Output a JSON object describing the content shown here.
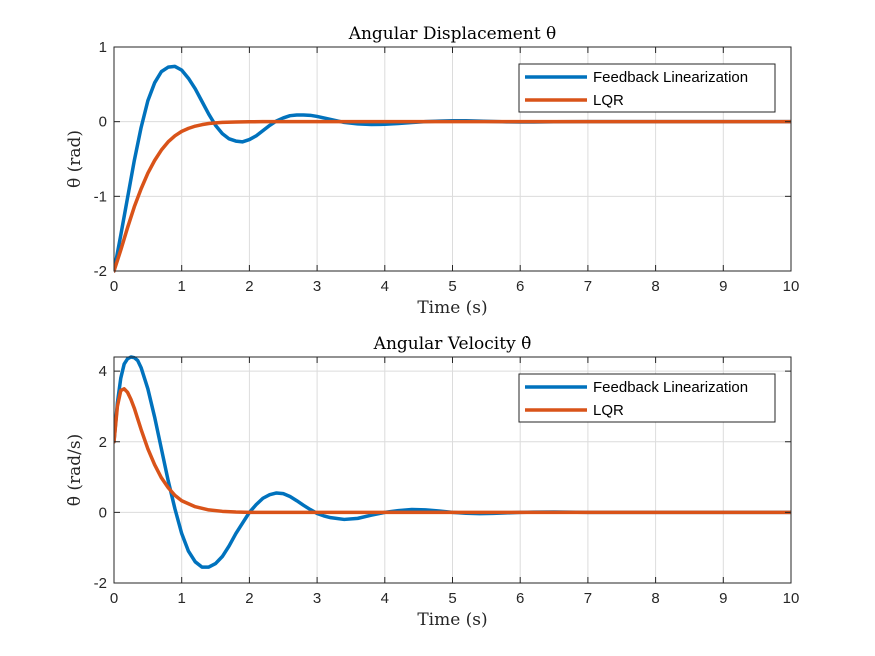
{
  "chart_data": [
    {
      "type": "line",
      "title": "Angular Displacement θ",
      "xlabel": "Time (s)",
      "ylabel": "θ (rad)",
      "xlim": [
        0,
        10
      ],
      "ylim": [
        -2,
        1
      ],
      "xticks": [
        "0",
        "1",
        "2",
        "3",
        "4",
        "5",
        "6",
        "7",
        "8",
        "9",
        "10"
      ],
      "yticks": [
        "-2",
        "-1",
        "0",
        "1"
      ],
      "grid": true,
      "legend_position": "top-right",
      "series": [
        {
          "name": "Feedback Linearization",
          "color": "#0072BD",
          "x": [
            0,
            0.1,
            0.2,
            0.3,
            0.4,
            0.5,
            0.6,
            0.7,
            0.8,
            0.9,
            1.0,
            1.1,
            1.2,
            1.3,
            1.4,
            1.5,
            1.6,
            1.7,
            1.8,
            1.9,
            2.0,
            2.1,
            2.2,
            2.3,
            2.4,
            2.5,
            2.6,
            2.7,
            2.8,
            2.9,
            3.0,
            3.1,
            3.2,
            3.4,
            3.6,
            3.8,
            4.0,
            4.2,
            4.4,
            4.6,
            4.8,
            5.0,
            5.2,
            5.4,
            5.6,
            5.8,
            6.0,
            6.2,
            6.5,
            7.0,
            7.5,
            8.0,
            8.5,
            9.0,
            9.5,
            10.0
          ],
          "y": [
            -2.0,
            -1.52,
            -1.02,
            -0.52,
            -0.08,
            0.28,
            0.52,
            0.67,
            0.73,
            0.74,
            0.69,
            0.58,
            0.44,
            0.27,
            0.1,
            -0.05,
            -0.16,
            -0.23,
            -0.26,
            -0.27,
            -0.24,
            -0.19,
            -0.12,
            -0.05,
            0.01,
            0.05,
            0.08,
            0.09,
            0.09,
            0.085,
            0.07,
            0.05,
            0.03,
            -0.01,
            -0.03,
            -0.038,
            -0.035,
            -0.025,
            -0.012,
            0.0,
            0.008,
            0.013,
            0.012,
            0.008,
            0.002,
            -0.003,
            -0.005,
            -0.004,
            -0.001,
            0.001,
            0.0,
            0.0,
            0.0,
            0.0,
            0.0,
            0.0
          ]
        },
        {
          "name": "LQR",
          "color": "#D95319",
          "x": [
            0,
            0.1,
            0.2,
            0.3,
            0.4,
            0.5,
            0.6,
            0.7,
            0.8,
            0.9,
            1.0,
            1.1,
            1.2,
            1.3,
            1.4,
            1.5,
            1.6,
            1.8,
            2.0,
            2.2,
            2.5,
            3.0,
            4.0,
            5.0,
            6.0,
            7.0,
            8.0,
            9.0,
            10.0
          ],
          "y": [
            -2.0,
            -1.72,
            -1.42,
            -1.14,
            -0.9,
            -0.69,
            -0.52,
            -0.38,
            -0.27,
            -0.19,
            -0.13,
            -0.09,
            -0.06,
            -0.04,
            -0.025,
            -0.016,
            -0.01,
            -0.004,
            -0.001,
            0.0,
            0.0,
            0.0,
            0.0,
            0.0,
            0.0,
            0.0,
            0.0,
            0.0,
            0.0
          ]
        }
      ]
    },
    {
      "type": "line",
      "title": "Angular Velocity θ̇",
      "xlabel": "Time (s)",
      "ylabel": "θ̇ (rad/s)",
      "xlim": [
        0,
        10
      ],
      "ylim": [
        -2,
        4.4
      ],
      "xticks": [
        "0",
        "1",
        "2",
        "3",
        "4",
        "5",
        "6",
        "7",
        "8",
        "9",
        "10"
      ],
      "yticks": [
        "-2",
        "0",
        "2",
        "4"
      ],
      "grid": true,
      "legend_position": "top-right",
      "series": [
        {
          "name": "Feedback Linearization",
          "color": "#0072BD",
          "x": [
            0,
            0.05,
            0.1,
            0.15,
            0.2,
            0.25,
            0.3,
            0.35,
            0.4,
            0.5,
            0.6,
            0.7,
            0.8,
            0.9,
            1.0,
            1.1,
            1.2,
            1.3,
            1.4,
            1.5,
            1.6,
            1.7,
            1.8,
            1.9,
            2.0,
            2.1,
            2.2,
            2.3,
            2.4,
            2.5,
            2.6,
            2.7,
            2.8,
            2.9,
            3.0,
            3.1,
            3.2,
            3.4,
            3.6,
            3.8,
            4.0,
            4.2,
            4.4,
            4.6,
            4.8,
            5.0,
            5.2,
            5.4,
            5.6,
            5.8,
            6.0,
            6.2,
            6.5,
            7.0,
            8.0,
            9.0,
            10.0
          ],
          "y": [
            2.0,
            3.1,
            3.8,
            4.2,
            4.35,
            4.4,
            4.38,
            4.3,
            4.1,
            3.5,
            2.7,
            1.8,
            0.9,
            0.1,
            -0.6,
            -1.1,
            -1.4,
            -1.55,
            -1.55,
            -1.45,
            -1.25,
            -0.95,
            -0.6,
            -0.3,
            0.0,
            0.22,
            0.4,
            0.5,
            0.55,
            0.53,
            0.45,
            0.33,
            0.2,
            0.08,
            -0.03,
            -0.1,
            -0.15,
            -0.2,
            -0.17,
            -0.08,
            0.0,
            0.05,
            0.08,
            0.07,
            0.04,
            0.0,
            -0.025,
            -0.035,
            -0.03,
            -0.015,
            0.0,
            0.008,
            0.01,
            0.0,
            0.0,
            0.0,
            0.0
          ]
        },
        {
          "name": "LQR",
          "color": "#D95319",
          "x": [
            0,
            0.05,
            0.1,
            0.15,
            0.2,
            0.25,
            0.3,
            0.35,
            0.4,
            0.5,
            0.6,
            0.7,
            0.8,
            0.9,
            1.0,
            1.2,
            1.4,
            1.6,
            1.8,
            2.0,
            2.5,
            3.0,
            4.0,
            5.0,
            6.0,
            7.0,
            8.0,
            9.0,
            10.0
          ],
          "y": [
            2.0,
            3.0,
            3.45,
            3.5,
            3.4,
            3.2,
            2.95,
            2.65,
            2.35,
            1.8,
            1.35,
            0.98,
            0.7,
            0.48,
            0.33,
            0.16,
            0.07,
            0.03,
            0.01,
            0.0,
            0.0,
            0.0,
            0.0,
            0.0,
            0.0,
            0.0,
            0.0,
            0.0,
            0.0
          ]
        }
      ]
    }
  ]
}
